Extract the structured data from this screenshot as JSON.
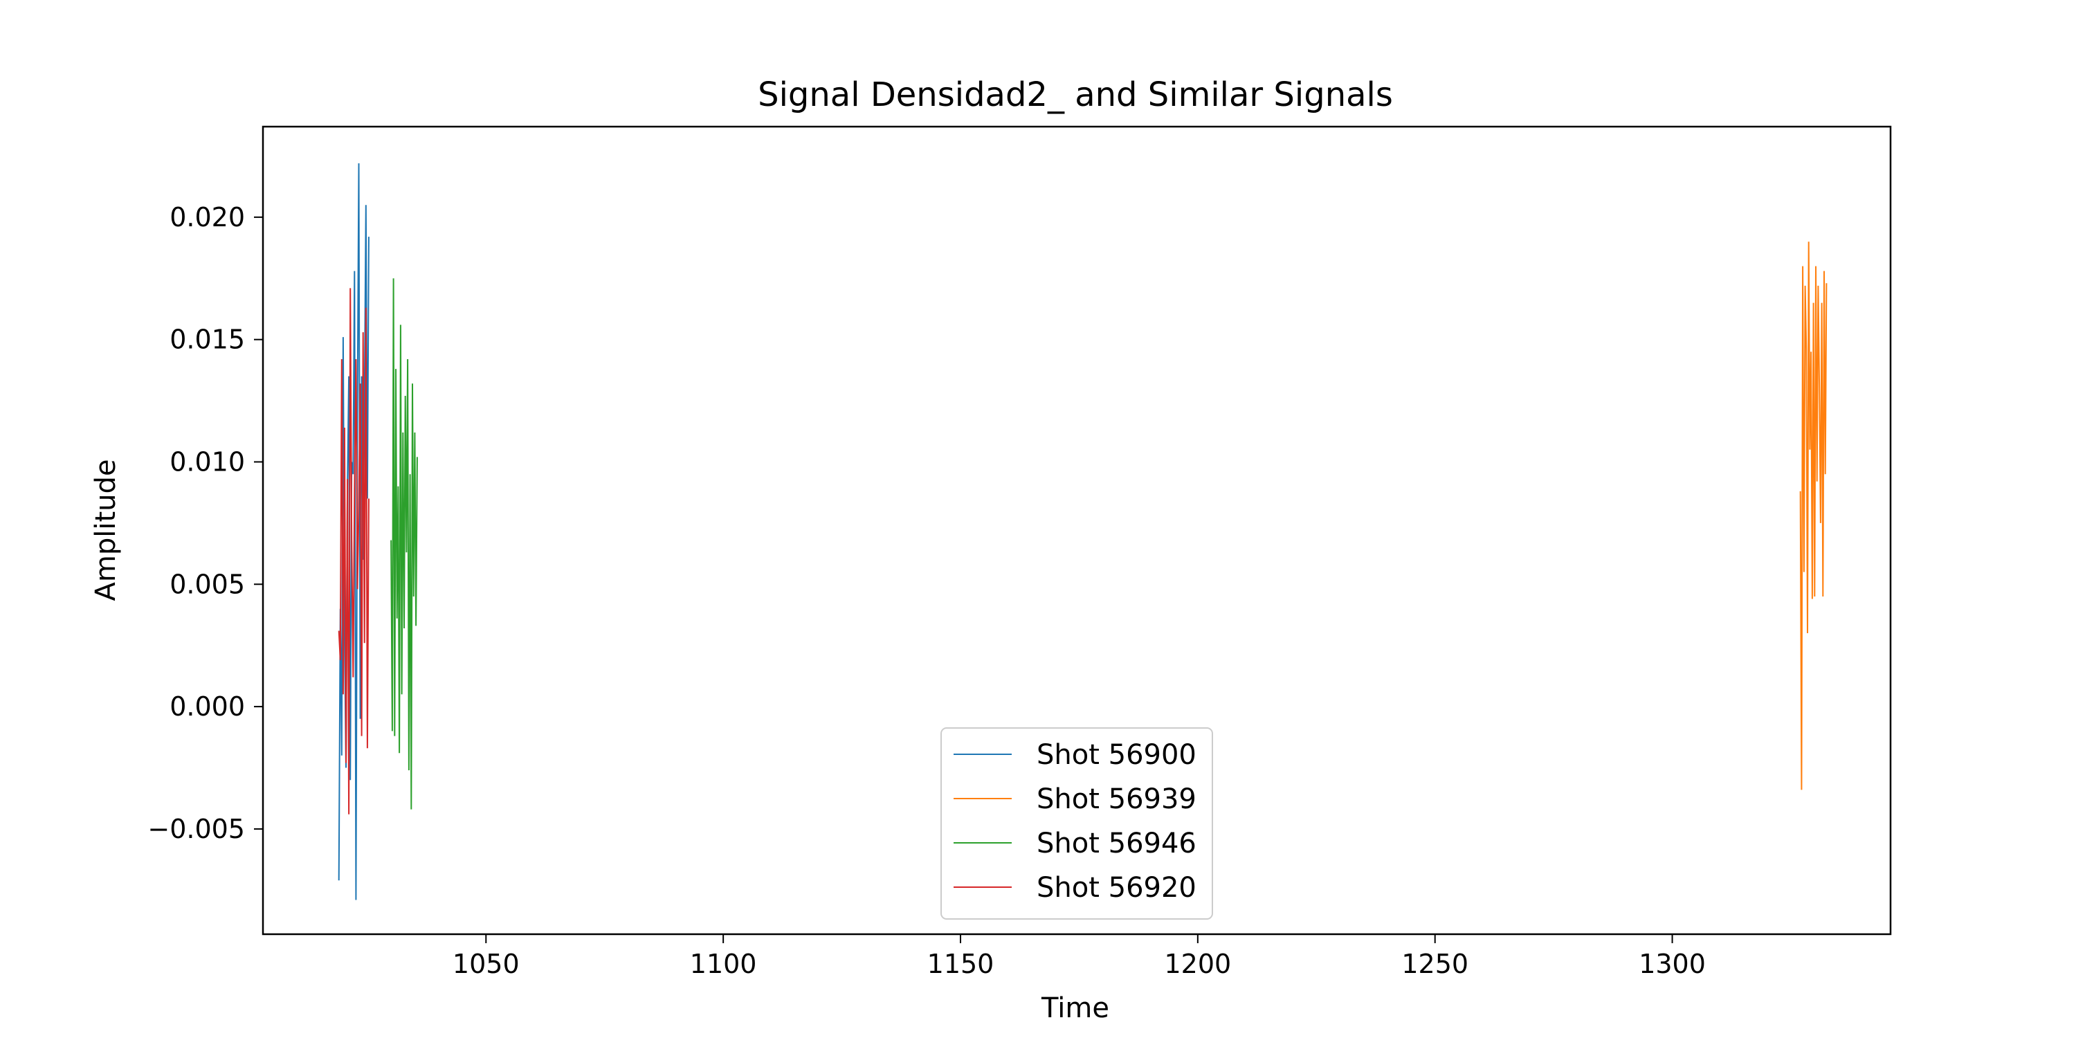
{
  "chart_data": {
    "type": "line",
    "title": "Signal Densidad2_ and Similar Signals",
    "xlabel": "Time",
    "ylabel": "Amplitude",
    "xlim": [
      1003,
      1346
    ],
    "ylim": [
      -0.0093,
      0.0237
    ],
    "xticks": [
      1050,
      1100,
      1150,
      1200,
      1250,
      1300
    ],
    "yticks": [
      -0.005,
      0.0,
      0.005,
      0.01,
      0.015,
      0.02
    ],
    "ytick_labels": [
      "−0.005",
      "0.000",
      "0.005",
      "0.010",
      "0.015",
      "0.020"
    ],
    "grid": false,
    "legend_position": "lower center",
    "series": [
      {
        "name": "Shot 56900",
        "color": "#1f77b4",
        "x": [
          1019.0,
          1019.3,
          1019.6,
          1019.9,
          1020.2,
          1020.5,
          1020.8,
          1021.1,
          1021.4,
          1021.7,
          1022.0,
          1022.3,
          1022.6,
          1022.9,
          1023.2,
          1023.5,
          1023.8,
          1024.1,
          1024.4,
          1024.7,
          1025.0,
          1025.3
        ],
        "y": [
          -0.0071,
          0.004,
          -0.002,
          0.0151,
          0.003,
          -0.0025,
          0.009,
          0.0135,
          -0.003,
          0.01,
          0.0095,
          0.0178,
          -0.0079,
          0.012,
          0.0222,
          -0.0005,
          0.0135,
          0.006,
          0.0125,
          0.0205,
          0.0085,
          0.0192
        ]
      },
      {
        "name": "Shot 56939",
        "color": "#ff7f0e",
        "x": [
          1327.0,
          1327.25,
          1327.5,
          1327.75,
          1328.0,
          1328.25,
          1328.5,
          1328.75,
          1329.0,
          1329.25,
          1329.5,
          1329.75,
          1330.0,
          1330.25,
          1330.5,
          1330.75,
          1331.0,
          1331.25,
          1331.5,
          1331.75,
          1332.0,
          1332.25,
          1332.5
        ],
        "y": [
          0.0088,
          -0.0034,
          0.018,
          0.0055,
          0.0172,
          0.0146,
          0.003,
          0.019,
          0.0105,
          0.0145,
          0.0044,
          0.0165,
          0.0045,
          0.018,
          0.0092,
          0.0172,
          0.0131,
          0.0075,
          0.0165,
          0.0045,
          0.0178,
          0.0095,
          0.0173
        ]
      },
      {
        "name": "Shot 56946",
        "color": "#2ca02c",
        "x": [
          1030.0,
          1030.25,
          1030.5,
          1030.75,
          1031.0,
          1031.25,
          1031.5,
          1031.75,
          1032.0,
          1032.25,
          1032.5,
          1032.75,
          1033.0,
          1033.25,
          1033.5,
          1033.75,
          1034.0,
          1034.25,
          1034.5,
          1034.75,
          1035.0,
          1035.25,
          1035.5
        ],
        "y": [
          0.0068,
          -0.001,
          0.0175,
          -0.0012,
          0.0138,
          0.0036,
          0.009,
          -0.0019,
          0.0156,
          0.0005,
          0.0112,
          0.0032,
          0.0127,
          0.0063,
          0.0142,
          -0.0026,
          0.0095,
          -0.0042,
          0.0132,
          0.0045,
          0.0112,
          0.0033,
          0.0102
        ]
      },
      {
        "name": "Shot 56920",
        "color": "#d62728",
        "x": [
          1019.0,
          1019.3,
          1019.6,
          1019.9,
          1020.2,
          1020.5,
          1020.8,
          1021.1,
          1021.4,
          1021.7,
          1022.0,
          1022.3,
          1022.6,
          1022.9,
          1023.2,
          1023.5,
          1023.8,
          1024.1,
          1024.4,
          1024.7,
          1025.0,
          1025.3
        ],
        "y": [
          0.0031,
          0.0019,
          0.0142,
          0.0005,
          0.0114,
          -0.0023,
          0.0093,
          -0.0044,
          0.0171,
          0.0068,
          0.0012,
          0.0088,
          0.0142,
          0.0048,
          0.0082,
          0.0132,
          -0.0012,
          0.0153,
          0.0026,
          0.0163,
          -0.0017,
          0.0085
        ]
      }
    ]
  }
}
